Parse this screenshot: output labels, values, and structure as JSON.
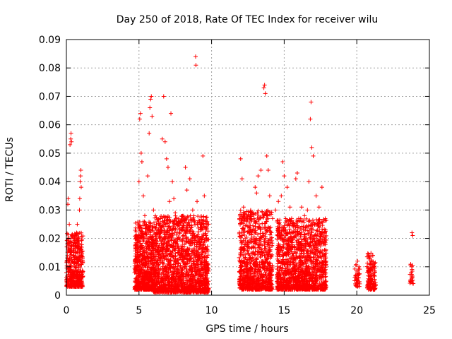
{
  "chart_data": {
    "type": "scatter",
    "title": "Day 250 of 2018, Rate Of TEC Index for receiver wilu",
    "xlabel": "GPS time / hours",
    "ylabel": "ROTI / TECUs",
    "xlim": [
      0,
      25
    ],
    "ylim": [
      0,
      0.09
    ],
    "xticks": [
      0,
      5,
      10,
      15,
      20,
      25
    ],
    "yticks": [
      0,
      0.01,
      0.02,
      0.03,
      0.04,
      0.05,
      0.06,
      0.07,
      0.08,
      0.09
    ],
    "xtick_labels": [
      "0",
      "5",
      "10",
      "15",
      "20",
      "25"
    ],
    "ytick_labels": [
      "0",
      "0.01",
      "0.02",
      "0.03",
      "0.04",
      "0.05",
      "0.06",
      "0.07",
      "0.08",
      "0.09"
    ],
    "grid": true,
    "marker": "+",
    "color": "#ff0000",
    "series": [
      {
        "points": [
          [
            0.1,
            0.032
          ],
          [
            0.12,
            0.034
          ],
          [
            0.15,
            0.02
          ],
          [
            0.2,
            0.025
          ],
          [
            0.25,
            0.053
          ],
          [
            0.3,
            0.055
          ],
          [
            0.32,
            0.057
          ],
          [
            0.35,
            0.054
          ],
          [
            0.4,
            0.021
          ],
          [
            0.45,
            0.018
          ],
          [
            0.5,
            0.015
          ],
          [
            0.55,
            0.012
          ],
          [
            0.6,
            0.01
          ],
          [
            0.65,
            0.008
          ],
          [
            0.7,
            0.022
          ],
          [
            0.75,
            0.025
          ],
          [
            0.8,
            0.02
          ],
          [
            0.85,
            0.019
          ],
          [
            0.9,
            0.03
          ],
          [
            0.92,
            0.034
          ],
          [
            0.95,
            0.04
          ],
          [
            0.98,
            0.042
          ],
          [
            1.0,
            0.044
          ],
          [
            1.02,
            0.038
          ],
          [
            0.2,
            0.009
          ],
          [
            0.3,
            0.007
          ],
          [
            0.5,
            0.006
          ],
          [
            0.7,
            0.011
          ],
          [
            0.9,
            0.013
          ],
          [
            1.0,
            0.016
          ],
          [
            4.8,
            0.018
          ],
          [
            4.9,
            0.015
          ],
          [
            5.0,
            0.04
          ],
          [
            5.05,
            0.062
          ],
          [
            5.1,
            0.064
          ],
          [
            5.15,
            0.05
          ],
          [
            5.2,
            0.047
          ],
          [
            5.3,
            0.035
          ],
          [
            5.4,
            0.028
          ],
          [
            5.5,
            0.025
          ],
          [
            5.6,
            0.042
          ],
          [
            5.7,
            0.057
          ],
          [
            5.75,
            0.066
          ],
          [
            5.8,
            0.069
          ],
          [
            5.85,
            0.07
          ],
          [
            5.9,
            0.063
          ],
          [
            6.0,
            0.03
          ],
          [
            6.2,
            0.025
          ],
          [
            6.4,
            0.022
          ],
          [
            6.6,
            0.055
          ],
          [
            6.7,
            0.07
          ],
          [
            6.8,
            0.054
          ],
          [
            6.9,
            0.048
          ],
          [
            7.0,
            0.045
          ],
          [
            7.1,
            0.033
          ],
          [
            7.2,
            0.064
          ],
          [
            7.3,
            0.04
          ],
          [
            7.4,
            0.034
          ],
          [
            7.5,
            0.029
          ],
          [
            7.6,
            0.025
          ],
          [
            7.8,
            0.023
          ],
          [
            8.0,
            0.024
          ],
          [
            8.2,
            0.045
          ],
          [
            8.3,
            0.037
          ],
          [
            8.5,
            0.041
          ],
          [
            8.7,
            0.03
          ],
          [
            8.8,
            0.026
          ],
          [
            8.9,
            0.084
          ],
          [
            8.92,
            0.081
          ],
          [
            9.0,
            0.033
          ],
          [
            9.2,
            0.018
          ],
          [
            9.4,
            0.049
          ],
          [
            9.5,
            0.035
          ],
          [
            9.6,
            0.026
          ],
          [
            9.7,
            0.016
          ],
          [
            5.0,
            0.01
          ],
          [
            5.5,
            0.012
          ],
          [
            6.0,
            0.008
          ],
          [
            6.5,
            0.014
          ],
          [
            7.0,
            0.011
          ],
          [
            7.5,
            0.013
          ],
          [
            8.0,
            0.009
          ],
          [
            8.5,
            0.012
          ],
          [
            9.0,
            0.007
          ],
          [
            9.5,
            0.01
          ],
          [
            12.0,
            0.048
          ],
          [
            12.1,
            0.041
          ],
          [
            12.2,
            0.031
          ],
          [
            12.4,
            0.026
          ],
          [
            12.6,
            0.022
          ],
          [
            12.8,
            0.029
          ],
          [
            13.0,
            0.038
          ],
          [
            13.1,
            0.036
          ],
          [
            13.2,
            0.042
          ],
          [
            13.4,
            0.044
          ],
          [
            13.6,
            0.073
          ],
          [
            13.65,
            0.074
          ],
          [
            13.7,
            0.071
          ],
          [
            13.8,
            0.049
          ],
          [
            13.9,
            0.044
          ],
          [
            14.0,
            0.035
          ],
          [
            14.2,
            0.027
          ],
          [
            14.4,
            0.03
          ],
          [
            14.6,
            0.033
          ],
          [
            14.8,
            0.035
          ],
          [
            14.9,
            0.047
          ],
          [
            15.0,
            0.042
          ],
          [
            15.2,
            0.038
          ],
          [
            15.4,
            0.031
          ],
          [
            15.6,
            0.022
          ],
          [
            15.8,
            0.041
          ],
          [
            15.9,
            0.043
          ],
          [
            16.0,
            0.027
          ],
          [
            16.2,
            0.031
          ],
          [
            16.4,
            0.028
          ],
          [
            16.6,
            0.03
          ],
          [
            16.7,
            0.04
          ],
          [
            16.8,
            0.062
          ],
          [
            16.85,
            0.068
          ],
          [
            16.9,
            0.052
          ],
          [
            17.0,
            0.049
          ],
          [
            17.2,
            0.035
          ],
          [
            17.4,
            0.031
          ],
          [
            17.6,
            0.038
          ],
          [
            17.8,
            0.022
          ],
          [
            12.5,
            0.008
          ],
          [
            13.0,
            0.01
          ],
          [
            13.5,
            0.012
          ],
          [
            14.0,
            0.009
          ],
          [
            14.5,
            0.007
          ],
          [
            15.0,
            0.011
          ],
          [
            15.5,
            0.013
          ],
          [
            16.0,
            0.01
          ],
          [
            16.5,
            0.008
          ],
          [
            17.0,
            0.012
          ],
          [
            17.5,
            0.009
          ],
          [
            19.9,
            0.004
          ],
          [
            20.0,
            0.006
          ],
          [
            20.1,
            0.007
          ],
          [
            20.05,
            0.012
          ],
          [
            20.15,
            0.01
          ],
          [
            20.8,
            0.005
          ],
          [
            20.9,
            0.008
          ],
          [
            21.0,
            0.012
          ],
          [
            21.1,
            0.014
          ],
          [
            21.2,
            0.01
          ],
          [
            21.05,
            0.006
          ],
          [
            23.7,
            0.005
          ],
          [
            23.75,
            0.008
          ],
          [
            23.8,
            0.022
          ],
          [
            23.85,
            0.021
          ],
          [
            23.78,
            0.01
          ]
        ]
      }
    ],
    "clusters": [
      {
        "x": [
          0.0,
          1.15
        ],
        "y": [
          0.003,
          0.022
        ],
        "n": 420
      },
      {
        "x": [
          4.7,
          6.0
        ],
        "y": [
          0.002,
          0.026
        ],
        "n": 650
      },
      {
        "x": [
          6.0,
          9.8
        ],
        "y": [
          0.001,
          0.028
        ],
        "n": 1600
      },
      {
        "x": [
          11.9,
          14.2
        ],
        "y": [
          0.002,
          0.03
        ],
        "n": 900
      },
      {
        "x": [
          14.5,
          17.9
        ],
        "y": [
          0.002,
          0.027
        ],
        "n": 1300
      },
      {
        "x": [
          19.85,
          20.2
        ],
        "y": [
          0.003,
          0.011
        ],
        "n": 40
      },
      {
        "x": [
          20.7,
          21.3
        ],
        "y": [
          0.002,
          0.015
        ],
        "n": 140
      },
      {
        "x": [
          23.65,
          23.9
        ],
        "y": [
          0.004,
          0.011
        ],
        "n": 20
      }
    ]
  }
}
